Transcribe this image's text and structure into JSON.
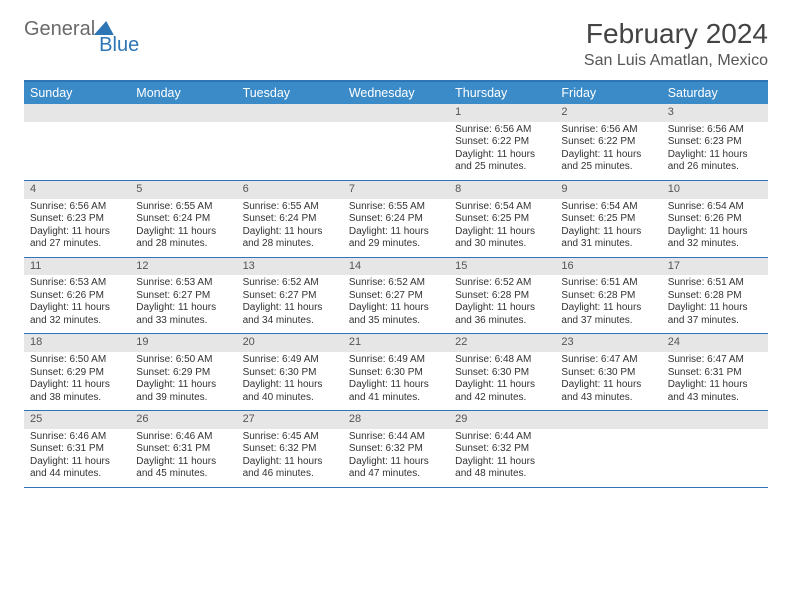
{
  "logo": {
    "text1": "General",
    "text2": "Blue"
  },
  "title": "February 2024",
  "location": "San Luis Amatlan, Mexico",
  "day_names": [
    "Sunday",
    "Monday",
    "Tuesday",
    "Wednesday",
    "Thursday",
    "Friday",
    "Saturday"
  ],
  "colors": {
    "header_bar": "#3b8bc9",
    "rule": "#2e75b6",
    "daynum_bg": "#e6e6e6",
    "text": "#333333",
    "logo_blue": "#2e75b6"
  },
  "weeks": [
    [
      {
        "n": "",
        "sr": "",
        "ss": "",
        "dl": ""
      },
      {
        "n": "",
        "sr": "",
        "ss": "",
        "dl": ""
      },
      {
        "n": "",
        "sr": "",
        "ss": "",
        "dl": ""
      },
      {
        "n": "",
        "sr": "",
        "ss": "",
        "dl": ""
      },
      {
        "n": "1",
        "sr": "Sunrise: 6:56 AM",
        "ss": "Sunset: 6:22 PM",
        "dl": "Daylight: 11 hours and 25 minutes."
      },
      {
        "n": "2",
        "sr": "Sunrise: 6:56 AM",
        "ss": "Sunset: 6:22 PM",
        "dl": "Daylight: 11 hours and 25 minutes."
      },
      {
        "n": "3",
        "sr": "Sunrise: 6:56 AM",
        "ss": "Sunset: 6:23 PM",
        "dl": "Daylight: 11 hours and 26 minutes."
      }
    ],
    [
      {
        "n": "4",
        "sr": "Sunrise: 6:56 AM",
        "ss": "Sunset: 6:23 PM",
        "dl": "Daylight: 11 hours and 27 minutes."
      },
      {
        "n": "5",
        "sr": "Sunrise: 6:55 AM",
        "ss": "Sunset: 6:24 PM",
        "dl": "Daylight: 11 hours and 28 minutes."
      },
      {
        "n": "6",
        "sr": "Sunrise: 6:55 AM",
        "ss": "Sunset: 6:24 PM",
        "dl": "Daylight: 11 hours and 28 minutes."
      },
      {
        "n": "7",
        "sr": "Sunrise: 6:55 AM",
        "ss": "Sunset: 6:24 PM",
        "dl": "Daylight: 11 hours and 29 minutes."
      },
      {
        "n": "8",
        "sr": "Sunrise: 6:54 AM",
        "ss": "Sunset: 6:25 PM",
        "dl": "Daylight: 11 hours and 30 minutes."
      },
      {
        "n": "9",
        "sr": "Sunrise: 6:54 AM",
        "ss": "Sunset: 6:25 PM",
        "dl": "Daylight: 11 hours and 31 minutes."
      },
      {
        "n": "10",
        "sr": "Sunrise: 6:54 AM",
        "ss": "Sunset: 6:26 PM",
        "dl": "Daylight: 11 hours and 32 minutes."
      }
    ],
    [
      {
        "n": "11",
        "sr": "Sunrise: 6:53 AM",
        "ss": "Sunset: 6:26 PM",
        "dl": "Daylight: 11 hours and 32 minutes."
      },
      {
        "n": "12",
        "sr": "Sunrise: 6:53 AM",
        "ss": "Sunset: 6:27 PM",
        "dl": "Daylight: 11 hours and 33 minutes."
      },
      {
        "n": "13",
        "sr": "Sunrise: 6:52 AM",
        "ss": "Sunset: 6:27 PM",
        "dl": "Daylight: 11 hours and 34 minutes."
      },
      {
        "n": "14",
        "sr": "Sunrise: 6:52 AM",
        "ss": "Sunset: 6:27 PM",
        "dl": "Daylight: 11 hours and 35 minutes."
      },
      {
        "n": "15",
        "sr": "Sunrise: 6:52 AM",
        "ss": "Sunset: 6:28 PM",
        "dl": "Daylight: 11 hours and 36 minutes."
      },
      {
        "n": "16",
        "sr": "Sunrise: 6:51 AM",
        "ss": "Sunset: 6:28 PM",
        "dl": "Daylight: 11 hours and 37 minutes."
      },
      {
        "n": "17",
        "sr": "Sunrise: 6:51 AM",
        "ss": "Sunset: 6:28 PM",
        "dl": "Daylight: 11 hours and 37 minutes."
      }
    ],
    [
      {
        "n": "18",
        "sr": "Sunrise: 6:50 AM",
        "ss": "Sunset: 6:29 PM",
        "dl": "Daylight: 11 hours and 38 minutes."
      },
      {
        "n": "19",
        "sr": "Sunrise: 6:50 AM",
        "ss": "Sunset: 6:29 PM",
        "dl": "Daylight: 11 hours and 39 minutes."
      },
      {
        "n": "20",
        "sr": "Sunrise: 6:49 AM",
        "ss": "Sunset: 6:30 PM",
        "dl": "Daylight: 11 hours and 40 minutes."
      },
      {
        "n": "21",
        "sr": "Sunrise: 6:49 AM",
        "ss": "Sunset: 6:30 PM",
        "dl": "Daylight: 11 hours and 41 minutes."
      },
      {
        "n": "22",
        "sr": "Sunrise: 6:48 AM",
        "ss": "Sunset: 6:30 PM",
        "dl": "Daylight: 11 hours and 42 minutes."
      },
      {
        "n": "23",
        "sr": "Sunrise: 6:47 AM",
        "ss": "Sunset: 6:30 PM",
        "dl": "Daylight: 11 hours and 43 minutes."
      },
      {
        "n": "24",
        "sr": "Sunrise: 6:47 AM",
        "ss": "Sunset: 6:31 PM",
        "dl": "Daylight: 11 hours and 43 minutes."
      }
    ],
    [
      {
        "n": "25",
        "sr": "Sunrise: 6:46 AM",
        "ss": "Sunset: 6:31 PM",
        "dl": "Daylight: 11 hours and 44 minutes."
      },
      {
        "n": "26",
        "sr": "Sunrise: 6:46 AM",
        "ss": "Sunset: 6:31 PM",
        "dl": "Daylight: 11 hours and 45 minutes."
      },
      {
        "n": "27",
        "sr": "Sunrise: 6:45 AM",
        "ss": "Sunset: 6:32 PM",
        "dl": "Daylight: 11 hours and 46 minutes."
      },
      {
        "n": "28",
        "sr": "Sunrise: 6:44 AM",
        "ss": "Sunset: 6:32 PM",
        "dl": "Daylight: 11 hours and 47 minutes."
      },
      {
        "n": "29",
        "sr": "Sunrise: 6:44 AM",
        "ss": "Sunset: 6:32 PM",
        "dl": "Daylight: 11 hours and 48 minutes."
      },
      {
        "n": "",
        "sr": "",
        "ss": "",
        "dl": ""
      },
      {
        "n": "",
        "sr": "",
        "ss": "",
        "dl": ""
      }
    ]
  ]
}
